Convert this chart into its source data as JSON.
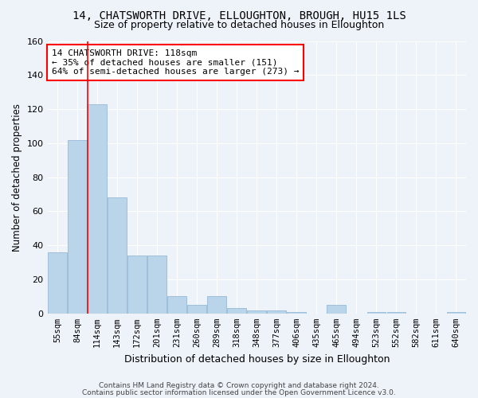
{
  "title": "14, CHATSWORTH DRIVE, ELLOUGHTON, BROUGH, HU15 1LS",
  "subtitle": "Size of property relative to detached houses in Elloughton",
  "xlabel": "Distribution of detached houses by size in Elloughton",
  "ylabel": "Number of detached properties",
  "categories": [
    "55sqm",
    "84sqm",
    "114sqm",
    "143sqm",
    "172sqm",
    "201sqm",
    "231sqm",
    "260sqm",
    "289sqm",
    "318sqm",
    "348sqm",
    "377sqm",
    "406sqm",
    "435sqm",
    "465sqm",
    "494sqm",
    "523sqm",
    "552sqm",
    "582sqm",
    "611sqm",
    "640sqm"
  ],
  "values": [
    36,
    102,
    123,
    68,
    34,
    34,
    10,
    5,
    10,
    3,
    2,
    2,
    1,
    0,
    5,
    0,
    1,
    1,
    0,
    0,
    1
  ],
  "bar_color": "#bad4ea",
  "bar_edgecolor": "#8ab0d0",
  "annotation_line1": "14 CHATSWORTH DRIVE: 118sqm",
  "annotation_line2": "← 35% of detached houses are smaller (151)",
  "annotation_line3": "64% of semi-detached houses are larger (273) →",
  "ylim": [
    0,
    160
  ],
  "yticks": [
    0,
    20,
    40,
    60,
    80,
    100,
    120,
    140,
    160
  ],
  "footer1": "Contains HM Land Registry data © Crown copyright and database right 2024.",
  "footer2": "Contains public sector information licensed under the Open Government Licence v3.0.",
  "background_color": "#eef2f9",
  "grid_color": "#ffffff",
  "title_fontsize": 10,
  "subtitle_fontsize": 9,
  "red_line_index": 2
}
